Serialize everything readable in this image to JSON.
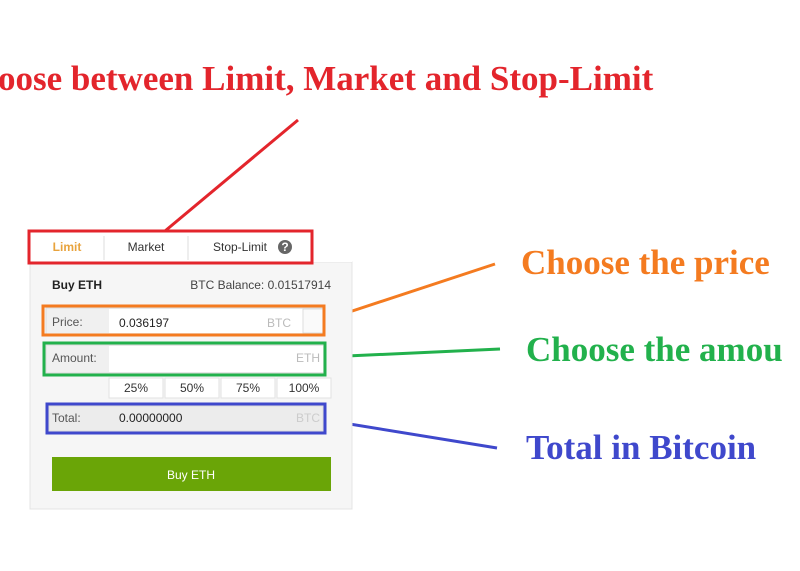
{
  "annotations": {
    "order_types": "oose between Limit, Market and Stop-Limit",
    "price": "Choose the price",
    "amount": "Choose the amou",
    "total": "Total in Bitcoin"
  },
  "tabs": [
    "Limit",
    "Market",
    "Stop-Limit"
  ],
  "help_icon": "?",
  "form": {
    "title": "Buy ETH",
    "balance": "BTC Balance: 0.01517914",
    "price": {
      "label": "Price:",
      "value": "0.036197",
      "unit": "BTC"
    },
    "amount": {
      "label": "Amount:",
      "unit": "ETH"
    },
    "percentages": [
      "25%",
      "50%",
      "75%",
      "100%"
    ],
    "total": {
      "label": "Total:",
      "value": "0.00000000",
      "unit": "BTC"
    },
    "button": "Buy ETH"
  }
}
